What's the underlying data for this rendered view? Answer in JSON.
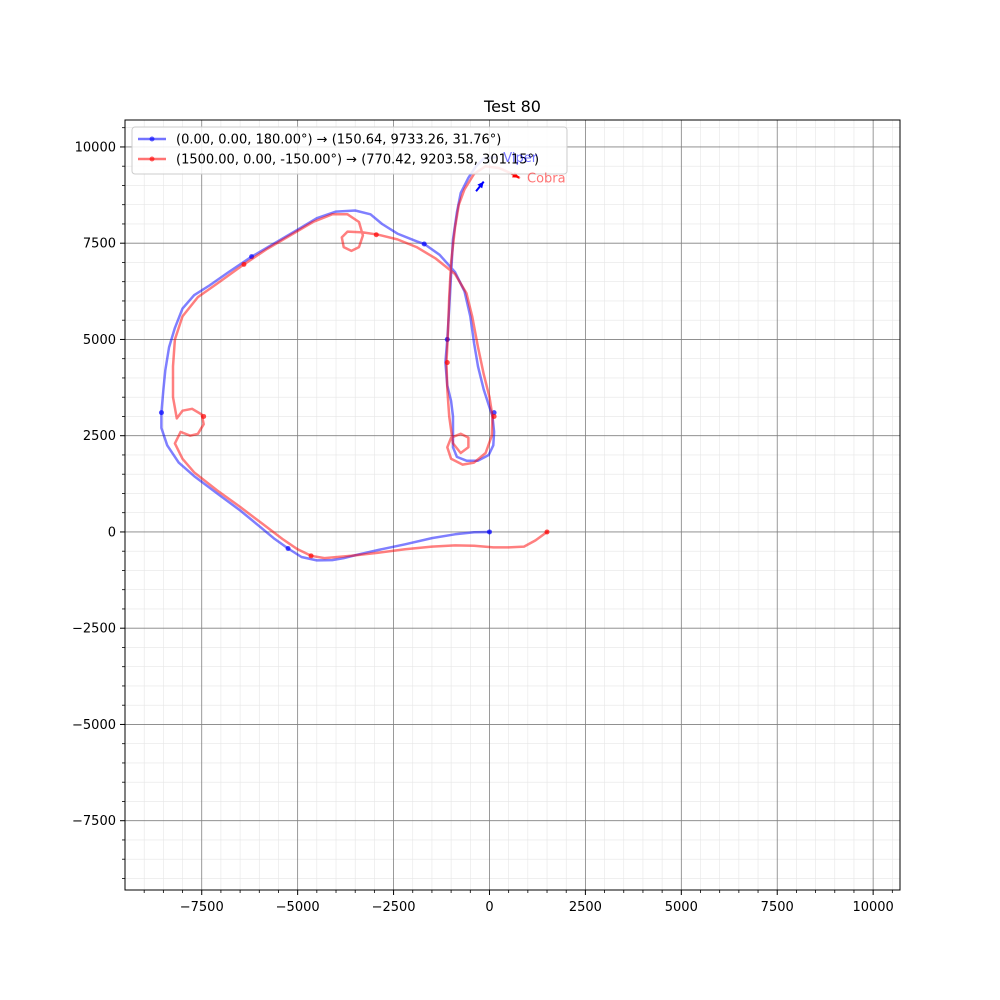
{
  "chart_data": {
    "type": "line",
    "title": "Test 80",
    "xlabel": "",
    "ylabel": "",
    "xlim": [
      -9500,
      10700
    ],
    "ylim": [
      -9300,
      10700
    ],
    "x_ticks": [
      -7500,
      -5000,
      -2500,
      0,
      2500,
      5000,
      7500,
      10000
    ],
    "y_ticks": [
      -7500,
      -5000,
      -2500,
      0,
      2500,
      5000,
      7500,
      10000
    ],
    "x_tick_labels": [
      "−7500",
      "−5000",
      "−2500",
      "0",
      "2500",
      "5000",
      "7500",
      "10000"
    ],
    "y_tick_labels": [
      "−7500",
      "−5000",
      "−2500",
      "0",
      "2500",
      "5000",
      "7500",
      "10000"
    ],
    "grid": true,
    "minor_grid": true,
    "legend_position": "top-left",
    "series": [
      {
        "name": "(0.00, 0.00, 180.00°) → (150.64, 9733.26, 31.76°)",
        "label": "Viper",
        "color": "#0000ff",
        "points": [
          [
            0,
            0
          ],
          [
            -400,
            -10
          ],
          [
            -900,
            -60
          ],
          [
            -1500,
            -160
          ],
          [
            -2200,
            -320
          ],
          [
            -2900,
            -470
          ],
          [
            -3400,
            -580
          ],
          [
            -3800,
            -680
          ],
          [
            -4100,
            -730
          ],
          [
            -4500,
            -740
          ],
          [
            -4900,
            -650
          ],
          [
            -5250,
            -430
          ],
          [
            -5600,
            -180
          ],
          [
            -6000,
            150
          ],
          [
            -6500,
            560
          ],
          [
            -7100,
            1000
          ],
          [
            -7700,
            1450
          ],
          [
            -8100,
            1800
          ],
          [
            -8400,
            2250
          ],
          [
            -8550,
            2700
          ],
          [
            -8550,
            3100
          ],
          [
            -8500,
            3700
          ],
          [
            -8450,
            4200
          ],
          [
            -8350,
            4800
          ],
          [
            -8200,
            5300
          ],
          [
            -8000,
            5800
          ],
          [
            -7700,
            6150
          ],
          [
            -7300,
            6400
          ],
          [
            -6800,
            6750
          ],
          [
            -6200,
            7150
          ],
          [
            -5600,
            7500
          ],
          [
            -5000,
            7850
          ],
          [
            -4500,
            8150
          ],
          [
            -4000,
            8320
          ],
          [
            -3500,
            8350
          ],
          [
            -3100,
            8250
          ],
          [
            -2800,
            8000
          ],
          [
            -2400,
            7750
          ],
          [
            -1900,
            7550
          ],
          [
            -1700,
            7480
          ],
          [
            -1300,
            7200
          ],
          [
            -900,
            6750
          ],
          [
            -650,
            6250
          ],
          [
            -500,
            5600
          ],
          [
            -400,
            4900
          ],
          [
            -300,
            4300
          ],
          [
            -150,
            3700
          ],
          [
            -20,
            3300
          ],
          [
            80,
            3000
          ],
          [
            120,
            2600
          ],
          [
            100,
            2250
          ],
          [
            -20,
            2000
          ],
          [
            -300,
            1850
          ],
          [
            -600,
            1850
          ],
          [
            -850,
            1950
          ],
          [
            -950,
            2200
          ],
          [
            -950,
            2600
          ],
          [
            -950,
            3000
          ],
          [
            -1000,
            3400
          ],
          [
            -1100,
            3800
          ],
          [
            -1150,
            4400
          ],
          [
            -1100,
            5000
          ],
          [
            -1050,
            5800
          ],
          [
            -1000,
            6700
          ],
          [
            -950,
            7600
          ],
          [
            -850,
            8300
          ],
          [
            -750,
            8800
          ],
          [
            -550,
            9200
          ],
          [
            -350,
            9500
          ],
          [
            -150,
            9700
          ],
          [
            150,
            9733
          ]
        ],
        "markers": [
          [
            0,
            0
          ],
          [
            -5250,
            -430
          ],
          [
            -8550,
            3100
          ],
          [
            -6200,
            7150
          ],
          [
            -1700,
            7480
          ],
          [
            -1100,
            5000
          ],
          [
            120,
            3100
          ]
        ],
        "end_arrow": [
          [
            -350,
            8850
          ],
          [
            -150,
            9100
          ]
        ]
      },
      {
        "name": "(1500.00, 0.00, -150.00°) → (770.42, 9203.58, 301.15°)",
        "label": "Cobra",
        "color": "#ff0000",
        "points": [
          [
            1500,
            0
          ],
          [
            1200,
            -220
          ],
          [
            900,
            -380
          ],
          [
            500,
            -400
          ],
          [
            100,
            -400
          ],
          [
            -400,
            -360
          ],
          [
            -900,
            -350
          ],
          [
            -1500,
            -380
          ],
          [
            -2200,
            -450
          ],
          [
            -2900,
            -540
          ],
          [
            -3600,
            -620
          ],
          [
            -4300,
            -680
          ],
          [
            -4650,
            -620
          ],
          [
            -5000,
            -450
          ],
          [
            -5400,
            -180
          ],
          [
            -5900,
            200
          ],
          [
            -6500,
            650
          ],
          [
            -7100,
            1080
          ],
          [
            -7700,
            1550
          ],
          [
            -8000,
            1900
          ],
          [
            -8200,
            2300
          ],
          [
            -8050,
            2600
          ],
          [
            -7800,
            2500
          ],
          [
            -7600,
            2550
          ],
          [
            -7450,
            2800
          ],
          [
            -7500,
            3050
          ],
          [
            -7750,
            3200
          ],
          [
            -8000,
            3150
          ],
          [
            -8150,
            2950
          ],
          [
            -8250,
            3500
          ],
          [
            -8250,
            4300
          ],
          [
            -8200,
            5000
          ],
          [
            -8000,
            5600
          ],
          [
            -7600,
            6100
          ],
          [
            -7100,
            6450
          ],
          [
            -6400,
            6950
          ],
          [
            -5800,
            7350
          ],
          [
            -5200,
            7700
          ],
          [
            -4600,
            8050
          ],
          [
            -4100,
            8250
          ],
          [
            -3700,
            8250
          ],
          [
            -3400,
            8050
          ],
          [
            -3300,
            7700
          ],
          [
            -3400,
            7400
          ],
          [
            -3600,
            7300
          ],
          [
            -3800,
            7400
          ],
          [
            -3850,
            7650
          ],
          [
            -3700,
            7800
          ],
          [
            -3300,
            7780
          ],
          [
            -2900,
            7720
          ],
          [
            -2400,
            7600
          ],
          [
            -1900,
            7400
          ],
          [
            -1400,
            7100
          ],
          [
            -900,
            6700
          ],
          [
            -600,
            6200
          ],
          [
            -450,
            5600
          ],
          [
            -300,
            4800
          ],
          [
            -150,
            4100
          ],
          [
            0,
            3500
          ],
          [
            80,
            3000
          ],
          [
            60,
            2500
          ],
          [
            -100,
            2050
          ],
          [
            -400,
            1800
          ],
          [
            -700,
            1750
          ],
          [
            -1000,
            1900
          ],
          [
            -1100,
            2200
          ],
          [
            -1000,
            2450
          ],
          [
            -750,
            2550
          ],
          [
            -550,
            2450
          ],
          [
            -550,
            2200
          ],
          [
            -750,
            2050
          ],
          [
            -950,
            2300
          ],
          [
            -1050,
            3000
          ],
          [
            -1100,
            3700
          ],
          [
            -1120,
            4400
          ],
          [
            -1080,
            5200
          ],
          [
            -1050,
            6100
          ],
          [
            -1000,
            7000
          ],
          [
            -900,
            7900
          ],
          [
            -800,
            8500
          ],
          [
            -650,
            8900
          ],
          [
            -400,
            9300
          ],
          [
            -100,
            9500
          ],
          [
            250,
            9450
          ],
          [
            550,
            9320
          ],
          [
            770,
            9204
          ]
        ],
        "markers": [
          [
            1500,
            0
          ],
          [
            -4650,
            -620
          ],
          [
            -7450,
            3000
          ],
          [
            -6400,
            6950
          ],
          [
            -2950,
            7720
          ],
          [
            -1100,
            4400
          ],
          [
            120,
            3000
          ]
        ],
        "end_arrow": [
          [
            550,
            9320
          ],
          [
            770,
            9204
          ]
        ]
      }
    ]
  }
}
